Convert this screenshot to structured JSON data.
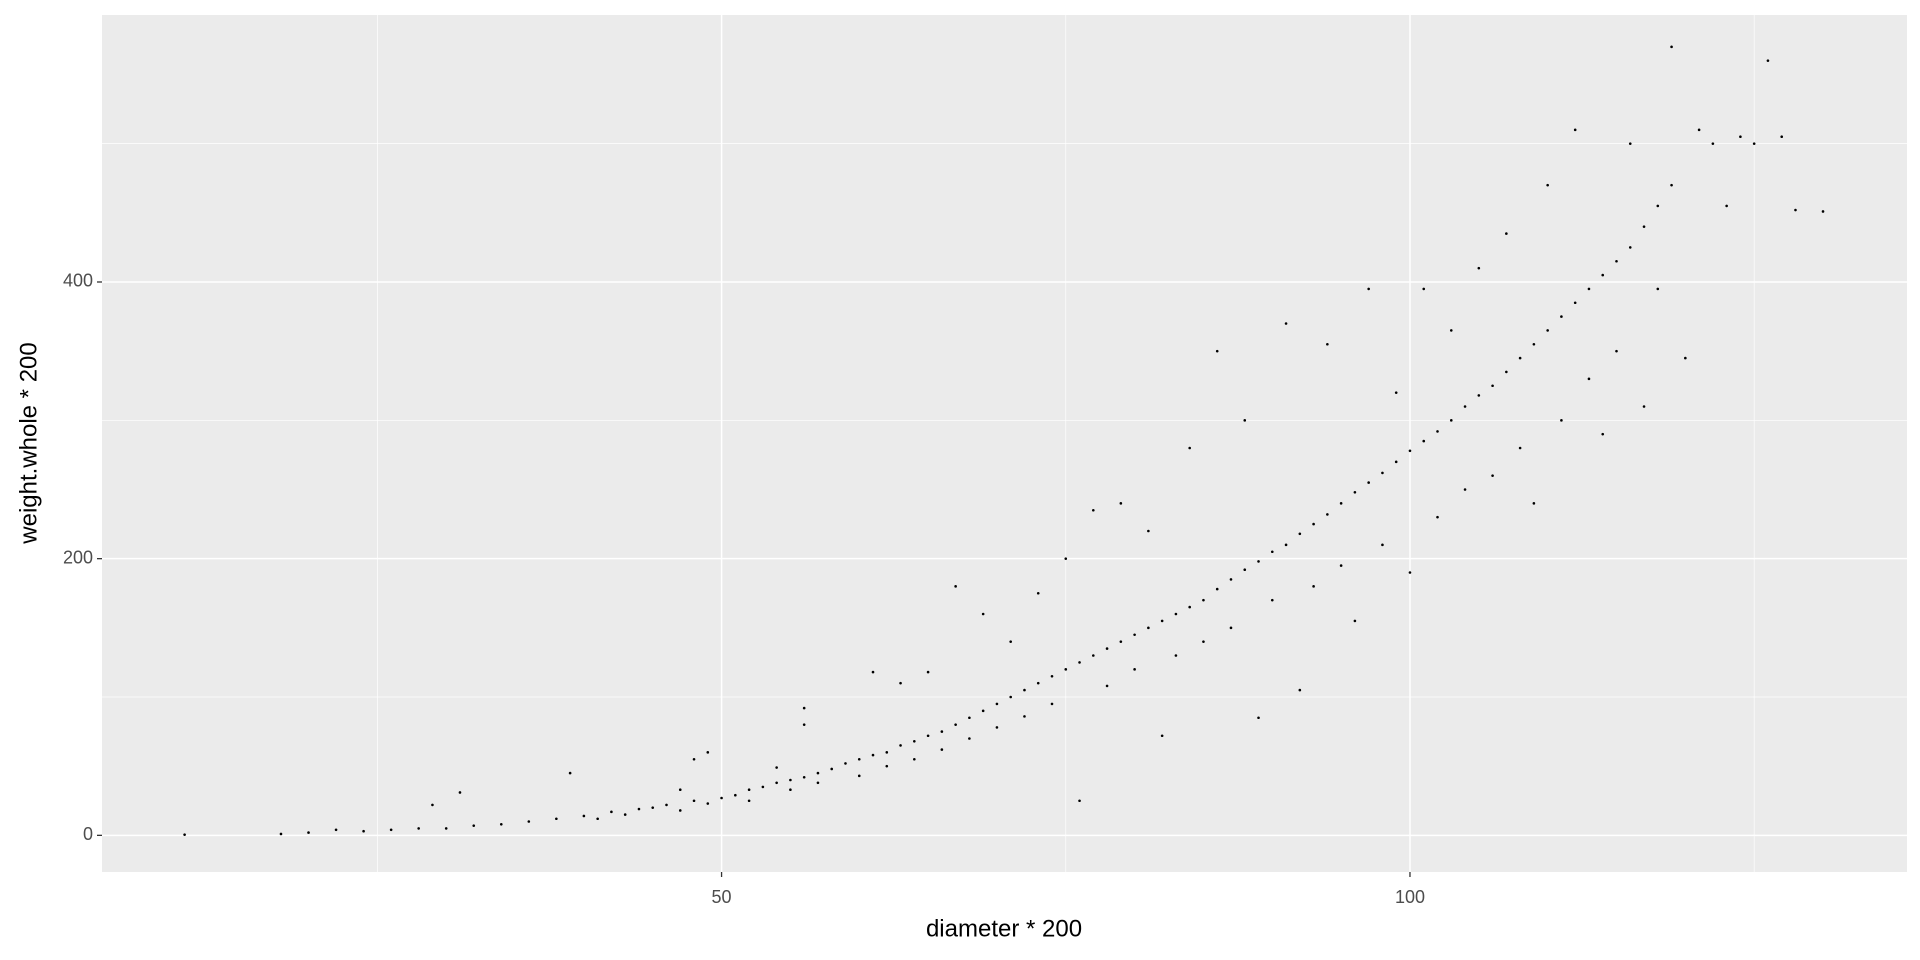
{
  "chart_data": {
    "type": "scatter",
    "x_label": "diameter * 200",
    "y_label": "weight.whole * 200",
    "xlim": [
      5,
      136.1
    ],
    "ylim": [
      -26.5,
      593
    ],
    "xticks": [
      50,
      100
    ],
    "yticks": [
      0,
      200,
      400
    ],
    "x_minor_grid": [
      25,
      75,
      125
    ],
    "y_minor_grid": [
      100,
      300,
      500
    ],
    "grid": true,
    "panel_color": "#ebebeb",
    "grid_color": "#ffffff",
    "color": "#000000",
    "x": [
      11,
      18,
      20,
      22,
      24,
      26,
      28,
      29,
      30,
      31,
      32,
      34,
      36,
      38,
      39,
      40,
      41,
      42,
      43,
      44,
      45,
      46,
      47,
      47,
      48,
      48,
      49,
      49,
      50,
      51,
      52,
      52,
      53,
      54,
      54,
      55,
      55,
      56,
      56,
      56,
      57,
      57,
      58,
      59,
      60,
      60,
      61,
      61,
      62,
      62,
      63,
      63,
      64,
      64,
      65,
      65,
      66,
      66,
      67,
      67,
      68,
      68,
      69,
      69,
      70,
      70,
      71,
      71,
      72,
      72,
      73,
      73,
      74,
      74,
      75,
      75,
      76,
      76,
      77,
      77,
      78,
      78,
      79,
      79,
      80,
      80,
      81,
      81,
      82,
      82,
      83,
      83,
      84,
      84,
      85,
      85,
      86,
      86,
      87,
      87,
      88,
      88,
      89,
      89,
      90,
      90,
      91,
      91,
      92,
      92,
      93,
      93,
      94,
      94,
      95,
      95,
      96,
      96,
      97,
      97,
      98,
      98,
      99,
      99,
      100,
      100,
      101,
      101,
      102,
      102,
      103,
      103,
      104,
      104,
      105,
      105,
      106,
      106,
      107,
      107,
      108,
      108,
      109,
      109,
      110,
      110,
      111,
      111,
      112,
      112,
      113,
      113,
      114,
      114,
      115,
      115,
      116,
      116,
      117,
      117,
      118,
      118,
      119,
      119,
      120,
      121,
      122,
      123,
      124,
      125,
      126,
      127,
      128,
      130
    ],
    "values": [
      0.5,
      1,
      2,
      4,
      3,
      4,
      5,
      22,
      5,
      31,
      7,
      8,
      10,
      12,
      45,
      14,
      12,
      17,
      15,
      19,
      20,
      22,
      18,
      33,
      25,
      55,
      23,
      60,
      27,
      29,
      33,
      25,
      35,
      38,
      49,
      40,
      33,
      42,
      80,
      92,
      45,
      38,
      48,
      52,
      55,
      43,
      58,
      118,
      60,
      50,
      65,
      110,
      68,
      55,
      72,
      118,
      75,
      62,
      80,
      180,
      85,
      70,
      90,
      160,
      95,
      78,
      100,
      140,
      105,
      86,
      110,
      175,
      115,
      95,
      120,
      200,
      125,
      25,
      130,
      235,
      135,
      108,
      140,
      240,
      145,
      120,
      150,
      220,
      155,
      72,
      160,
      130,
      165,
      280,
      170,
      140,
      178,
      350,
      185,
      150,
      192,
      300,
      198,
      85,
      205,
      170,
      210,
      370,
      218,
      105,
      225,
      180,
      232,
      355,
      240,
      195,
      248,
      155,
      255,
      395,
      262,
      210,
      270,
      320,
      278,
      190,
      285,
      395,
      292,
      230,
      300,
      365,
      310,
      250,
      318,
      410,
      325,
      260,
      335,
      435,
      345,
      280,
      355,
      240,
      365,
      470,
      375,
      300,
      385,
      510,
      395,
      330,
      405,
      290,
      415,
      350,
      425,
      500,
      440,
      310,
      455,
      395,
      470,
      570,
      345,
      510,
      500,
      455,
      505,
      500,
      560,
      505,
      452,
      451
    ]
  }
}
